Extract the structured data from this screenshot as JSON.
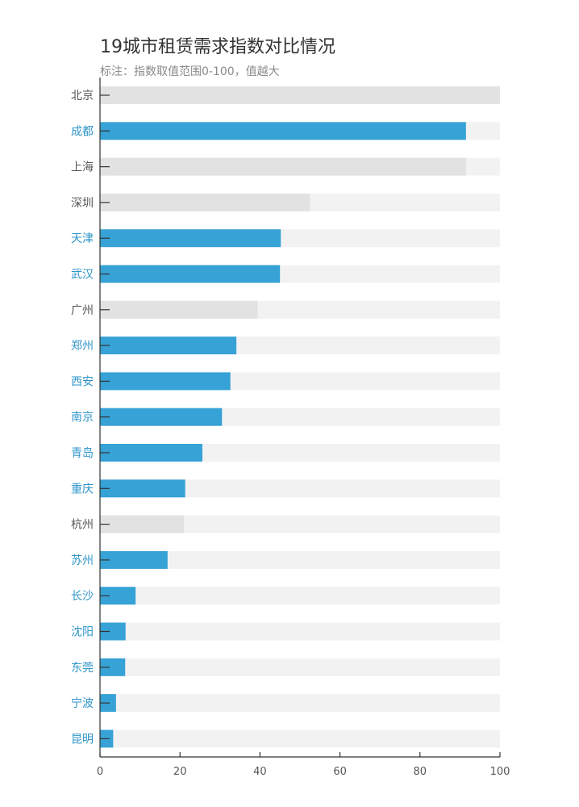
{
  "chart_data": {
    "type": "bar",
    "orientation": "horizontal",
    "title": "19城市租赁需求指数对比情况",
    "subtitle": "标注：指数取值范围0-100，值越大",
    "xlim": [
      0,
      100
    ],
    "xticks": [
      0,
      20,
      40,
      60,
      80,
      100
    ],
    "categories": [
      "北京",
      "成都",
      "上海",
      "深圳",
      "天津",
      "武汉",
      "广州",
      "郑州",
      "西安",
      "南京",
      "青岛",
      "重庆",
      "杭州",
      "苏州",
      "长沙",
      "沈阳",
      "东莞",
      "宁波",
      "昆明"
    ],
    "values": [
      100,
      91.5,
      91.5,
      52.5,
      45.2,
      45.0,
      39.4,
      34.1,
      32.6,
      30.5,
      25.6,
      21.3,
      21.0,
      16.9,
      8.9,
      6.4,
      6.3,
      4.0,
      3.3
    ],
    "highlighted": [
      false,
      true,
      false,
      false,
      true,
      true,
      false,
      true,
      true,
      true,
      true,
      true,
      false,
      true,
      true,
      true,
      true,
      true,
      true
    ],
    "grid": false,
    "legend": "none"
  },
  "colors": {
    "highlight_bar": "#36a2d6",
    "muted_bar": "#e2e2e2",
    "track": "#f2f2f3",
    "highlight_label": "#2f95c9",
    "muted_label": "#555555",
    "axis": "#333333"
  }
}
